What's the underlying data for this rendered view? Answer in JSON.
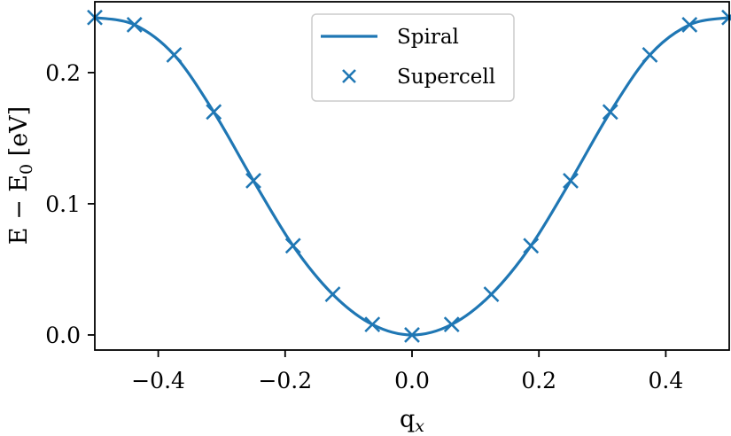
{
  "chart_data": {
    "type": "line",
    "title": "",
    "xlabel": "q_x",
    "ylabel": "E − E0 [eV]",
    "xlim": [
      -0.5,
      0.5
    ],
    "ylim": [
      -0.0115,
      0.254
    ],
    "grid": false,
    "legend_position": "upper center",
    "xticks": [
      -0.4,
      -0.2,
      0.0,
      0.2,
      0.4
    ],
    "xtick_labels": [
      "−0.4",
      "−0.2",
      "0.0",
      "0.2",
      "0.4"
    ],
    "yticks": [
      0.0,
      0.1,
      0.2
    ],
    "ytick_labels": [
      "0.0",
      "0.1",
      "0.2"
    ],
    "series": [
      {
        "name": "Spiral",
        "style": "line",
        "color": "#1f77b4",
        "function": "smooth curve through supercell points",
        "x": [
          -0.5,
          -0.4375,
          -0.375,
          -0.3125,
          -0.25,
          -0.1875,
          -0.125,
          -0.0625,
          0.0,
          0.0625,
          0.125,
          0.1875,
          0.25,
          0.3125,
          0.375,
          0.4375,
          0.5
        ],
        "values": [
          0.242,
          0.2365,
          0.2135,
          0.17,
          0.1176,
          0.068,
          0.031,
          0.008,
          0.0,
          0.008,
          0.031,
          0.068,
          0.1176,
          0.17,
          0.2135,
          0.2365,
          0.242
        ]
      },
      {
        "name": "Supercell",
        "style": "x-markers",
        "color": "#1f77b4",
        "x": [
          -0.5,
          -0.4375,
          -0.375,
          -0.3125,
          -0.25,
          -0.1875,
          -0.125,
          -0.0625,
          0.0,
          0.0625,
          0.125,
          0.1875,
          0.25,
          0.3125,
          0.375,
          0.4375,
          0.5
        ],
        "values": [
          0.242,
          0.2365,
          0.2135,
          0.17,
          0.1176,
          0.068,
          0.031,
          0.008,
          0.0,
          0.008,
          0.031,
          0.068,
          0.1176,
          0.17,
          0.2135,
          0.2365,
          0.242
        ]
      }
    ]
  },
  "legend": {
    "items": [
      {
        "label": "Spiral",
        "symbol": "line"
      },
      {
        "label": "Supercell",
        "symbol": "x"
      }
    ]
  },
  "axes": {
    "xlabel_main": "q",
    "xlabel_sub": "x",
    "ylabel_part1": "E − E",
    "ylabel_sub": "0",
    "ylabel_part2": " [eV]"
  },
  "colors": {
    "series": "#1f77b4",
    "axes": "#000000",
    "legend_border": "#cccccc"
  }
}
